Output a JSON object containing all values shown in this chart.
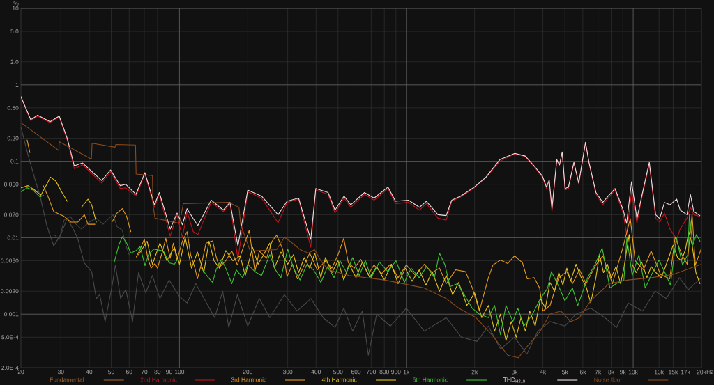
{
  "chart_data": {
    "type": "line",
    "ylabel": "%",
    "xlabel": "Hz",
    "log": "xy",
    "grid": true,
    "legend": "bottom",
    "marker": "none",
    "xlim": [
      20,
      20000
    ],
    "ylim": [
      0.0002,
      10
    ],
    "xticks": [
      20,
      30,
      40,
      50,
      60,
      70,
      80,
      90,
      100,
      200,
      300,
      400,
      500,
      600,
      700,
      800,
      900,
      {
        "value": 1000,
        "label": "1k"
      },
      {
        "value": 2000,
        "label": "2k"
      },
      {
        "value": 3000,
        "label": "3k"
      },
      {
        "value": 4000,
        "label": "4k"
      },
      {
        "value": 5000,
        "label": "5k"
      },
      {
        "value": 6000,
        "label": "6k"
      },
      {
        "value": 7000,
        "label": "7k"
      },
      {
        "value": 8000,
        "label": "8k"
      },
      {
        "value": 9000,
        "label": "9k"
      },
      {
        "value": 10000,
        "label": "10k"
      },
      {
        "value": 13000,
        "label": "13k"
      },
      {
        "value": 15000,
        "label": "15k"
      },
      {
        "value": 17000,
        "label": "17k"
      },
      {
        "value": 20000,
        "label": "20k"
      }
    ],
    "yticks": [
      10,
      {
        "value": 5,
        "label": "5.0"
      },
      {
        "value": 2,
        "label": "2.0"
      },
      1,
      {
        "value": 0.5,
        "label": "0.50"
      },
      {
        "value": 0.2,
        "label": "0.20"
      },
      0.1,
      {
        "value": 0.05,
        "label": "0.050"
      },
      {
        "value": 0.02,
        "label": "0.020"
      },
      0.01,
      {
        "value": 0.005,
        "label": "0.0050"
      },
      {
        "value": 0.002,
        "label": "0.0020"
      },
      0.001,
      {
        "value": 0.0005,
        "label": "5.0E-4"
      },
      {
        "value": 0.0002,
        "label": "2.0E-4"
      }
    ],
    "x": [
      20,
      22.1,
      23.7,
      26.9,
      29.5,
      32,
      34.4,
      37.4,
      45.4,
      49.7,
      54.8,
      57.9,
      64.3,
      70.4,
      77.6,
      81.5,
      91,
      97.6,
      103,
      108,
      115,
      120.5,
      138,
      156,
      167,
      181,
      200,
      230,
      272,
      298,
      335,
      379,
      399,
      452,
      485,
      531,
      569,
      654,
      721,
      830,
      896,
      1022,
      1143,
      1225,
      1379,
      1499,
      1585,
      1735,
      1995,
      2245,
      2583,
      3010,
      3345,
      3660,
      3980,
      4150,
      4265,
      4385,
      4605,
      4735,
      4865,
      5010,
      5185,
      5480,
      5755,
      6165,
      6385,
      6855,
      7345,
      7760,
      8315,
      9040,
      9355,
      9835,
      10390,
      10910,
      11780,
      12560,
      13090,
      13740,
      14520,
      15560,
      16110,
      17270,
      17870,
      18500,
      19680
    ],
    "series": [
      {
        "name": "Fundamental",
        "color": "#a0602a",
        "values": [
          null,
          null,
          null,
          null,
          null,
          null,
          null,
          null,
          null,
          null,
          null,
          null,
          null,
          null,
          null,
          null,
          null,
          null,
          null,
          null,
          null,
          null,
          null,
          null,
          null,
          null,
          null,
          null,
          null,
          null,
          null,
          null,
          null,
          null,
          null,
          null,
          null,
          null,
          null,
          null,
          null,
          null,
          null,
          null,
          null,
          null,
          null,
          null,
          null,
          null,
          null,
          null,
          null,
          null,
          null,
          null,
          null,
          null,
          null,
          null,
          null,
          null,
          null,
          null,
          null,
          null,
          null,
          null,
          null,
          null,
          null,
          null,
          null,
          null,
          null,
          null,
          null,
          null,
          null,
          null,
          null,
          null,
          null,
          null,
          null,
          null,
          null
        ]
      },
      {
        "name": "2nd Harmonic",
        "color": "#c4141c",
        "values": [
          0.68,
          0.34,
          0.39,
          0.32,
          0.38,
          0.19,
          0.08,
          0.09,
          0.052,
          0.073,
          0.044,
          0.045,
          0.035,
          0.068,
          0.025,
          0.037,
          0.0105,
          0.02,
          0.01,
          0.022,
          0.012,
          0.011,
          0.029,
          0.022,
          0.028,
          0.0052,
          0.04,
          0.033,
          0.0157,
          0.029,
          0.032,
          0.0075,
          0.042,
          0.037,
          0.021,
          0.033,
          0.025,
          0.037,
          0.031,
          0.044,
          0.028,
          0.029,
          0.023,
          0.028,
          0.018,
          0.017,
          0.03,
          0.034,
          0.045,
          0.061,
          0.1,
          0.125,
          0.115,
          0.085,
          0.062,
          0.044,
          0.055,
          0.022,
          0.1,
          0.088,
          0.13,
          0.042,
          0.044,
          0.095,
          0.05,
          0.175,
          0.095,
          0.037,
          0.027,
          0.033,
          0.042,
          0.021,
          0.011,
          0.04,
          0.0155,
          0.033,
          0.09,
          0.018,
          0.016,
          0.021,
          0.013,
          0.0096,
          0.013,
          0.018,
          0.025,
          0.02,
          0.019
        ]
      },
      {
        "name": "3rd Harmonic",
        "color": "#e89a1c",
        "x": [
          21.3,
          21.9,
          22.4,
          25.1,
          26.5,
          27.9,
          31,
          33.2,
          35.6,
          38.1,
          39.5,
          42.4,
          43.5,
          50.4,
          53,
          56,
          58.5,
          61,
          62,
          64.5,
          67,
          70,
          72.5,
          75,
          78,
          80,
          84,
          87,
          91,
          94,
          97.5,
          103,
          108,
          112,
          117,
          120,
          126,
          131,
          140,
          145,
          150,
          160,
          170,
          180,
          190,
          203,
          215,
          225,
          242,
          256,
          268,
          285,
          298,
          315,
          331,
          350,
          375,
          405,
          440,
          470,
          500,
          530,
          555,
          590,
          630,
          680,
          720,
          780,
          850,
          920,
          1000,
          1100,
          1200,
          1300,
          1400,
          1500,
          1650,
          1823,
          1955,
          2100,
          2300,
          2409,
          2600,
          2800,
          3000,
          3250,
          3414,
          3660,
          3870,
          4000,
          4300,
          4700,
          5100,
          5400,
          5800,
          6200,
          6850,
          7350,
          8100,
          9040,
          9711,
          10200,
          11100,
          12000,
          13200,
          14500,
          15300,
          16400,
          17300,
          18183,
          18800,
          20000
        ],
        "values": [
          0.19,
          0.13,
          null,
          0.048,
          0.033,
          0.022,
          0.019,
          0.016,
          0.016,
          0.02,
          0.015,
          0.015,
          null,
          0.016,
          0.021,
          0.024,
          0.019,
          0.012,
          null,
          0.0056,
          0.007,
          0.0096,
          0.0054,
          0.004,
          0.0046,
          0.004,
          0.0065,
          0.0098,
          0.0054,
          0.0085,
          0.0051,
          0.009,
          0.012,
          0.006,
          0.004,
          0.0029,
          0.005,
          0.0085,
          0.0091,
          0.0057,
          0.0041,
          0.005,
          0.0067,
          0.0044,
          0.0071,
          0.0125,
          0.0036,
          0.0067,
          0.0054,
          0.009,
          0.0108,
          0.0071,
          0.0031,
          0.0045,
          0.0029,
          0.004,
          0.0063,
          0.0038,
          0.005,
          0.004,
          0.006,
          0.0098,
          0.0047,
          0.004,
          0.0052,
          0.0033,
          0.0044,
          0.0034,
          0.0045,
          0.003,
          0.0044,
          0.0032,
          0.0045,
          0.0035,
          0.004,
          0.0025,
          0.0038,
          0.0036,
          0.0022,
          0.0011,
          0.003,
          0.0044,
          0.0051,
          0.0046,
          0.0058,
          0.0047,
          0.0029,
          0.003,
          0.0022,
          0.0011,
          0.0013,
          0.003,
          0.0036,
          0.0025,
          0.0038,
          0.0025,
          0.0044,
          0.0058,
          0.0025,
          0.0077,
          0.0178,
          0.005,
          0.0038,
          0.0067,
          0.0033,
          0.0029,
          0.0101,
          0.006,
          0.0045,
          0.0203,
          0.0044,
          0.0073
        ]
      },
      {
        "name": "4th Harmonic",
        "color": "#e6c21a",
        "x": [
          20,
          21.5,
          23,
          24.5,
          26,
          27,
          28.5,
          30.5,
          32,
          33,
          37,
          39.5,
          41,
          43,
          44,
          66,
          72,
          76,
          82,
          88,
          95,
          100,
          106,
          113,
          120,
          128,
          135,
          142,
          150,
          160,
          172,
          185,
          195,
          210,
          222,
          235,
          250,
          262,
          280,
          300,
          318,
          335,
          355,
          375,
          395,
          420,
          440,
          470,
          500,
          530,
          560,
          600,
          640,
          690,
          740,
          800,
          860,
          920,
          990,
          1060,
          1140,
          1220,
          1300,
          1400,
          1500,
          1600,
          1700,
          1850,
          2000,
          2150,
          2300,
          2450,
          2600,
          2750,
          2900,
          3050,
          3200,
          3350,
          3500,
          3700,
          3900,
          4100,
          4300,
          4500,
          4700,
          4900,
          5100,
          5300,
          5600,
          5900,
          6200,
          6500,
          6850,
          7100,
          7400,
          7700,
          8000,
          8400,
          8800,
          9100,
          9600,
          9900,
          10300,
          10900,
          11500,
          12000,
          12600,
          13300,
          14000,
          14500,
          15000,
          15700,
          16300,
          17000,
          17600,
          18200,
          18900,
          19700
        ],
        "values": [
          0.045,
          0.048,
          0.042,
          0.036,
          0.05,
          0.062,
          0.055,
          0.038,
          0.03,
          null,
          0.025,
          0.032,
          0.027,
          0.016,
          null,
          0.006,
          0.009,
          0.0045,
          0.0085,
          0.005,
          0.0075,
          0.0045,
          0.01,
          0.004,
          0.0065,
          0.0035,
          0.009,
          0.005,
          0.004,
          0.0068,
          0.005,
          0.0058,
          0.0032,
          0.0075,
          0.0045,
          0.006,
          0.0085,
          0.004,
          0.0065,
          0.0045,
          0.006,
          0.0035,
          0.0055,
          0.004,
          0.0063,
          0.003,
          0.0055,
          0.0035,
          0.005,
          0.0028,
          0.0045,
          0.003,
          0.0048,
          0.003,
          0.0042,
          0.0028,
          0.0045,
          0.0025,
          0.004,
          0.0027,
          0.0038,
          0.0024,
          0.0036,
          0.002,
          0.0032,
          0.0018,
          0.0026,
          0.0013,
          0.0019,
          0.0009,
          0.0013,
          0.0006,
          0.001,
          0.00045,
          0.0008,
          0.0005,
          0.0009,
          0.0006,
          0.0011,
          0.0007,
          0.0016,
          0.0012,
          0.0026,
          0.002,
          0.0035,
          0.0024,
          0.004,
          0.0027,
          0.0045,
          0.003,
          0.0023,
          0.0014,
          0.003,
          0.006,
          0.0035,
          0.0045,
          0.003,
          0.0042,
          0.0025,
          0.004,
          0.011,
          0.0045,
          0.0035,
          0.0048,
          0.003,
          0.0042,
          0.0035,
          0.003,
          0.0045,
          0.006,
          0.008,
          0.0055,
          0.005,
          0.007,
          0.012,
          0.008,
          0.0035,
          0.0025
        ]
      },
      {
        "name": "5th Harmonic",
        "color": "#3ec234",
        "x": [
          20,
          21.3,
          22.6,
          24.3,
          25.1,
          25.6,
          51.5,
          54,
          56,
          58.5,
          61,
          64.5,
          67,
          70.5,
          73,
          77,
          81,
          85,
          90,
          95,
          98,
          101,
          124,
          133,
          140,
          145,
          153,
          160,
          170,
          178,
          190,
          200,
          215,
          230,
          250,
          265,
          280,
          300,
          318,
          340,
          365,
          390,
          420,
          450,
          480,
          510,
          545,
          580,
          620,
          660,
          700,
          760,
          830,
          900,
          980,
          1050,
          1140,
          1230,
          1330,
          1400,
          1480,
          1560,
          1680,
          1800,
          1950,
          2100,
          2300,
          2450,
          2600,
          2750,
          2950,
          3100,
          3300,
          3600,
          3900,
          4200,
          4360,
          4700,
          5000,
          5400,
          5700,
          6300,
          6800,
          7300,
          7900,
          8400,
          9100,
          9380,
          9900,
          10600,
          11300,
          12000,
          13000,
          14000,
          14600,
          15500,
          16500,
          17400,
          17700,
          18300,
          19000,
          19700
        ],
        "values": [
          0.04,
          0.045,
          0.042,
          0.034,
          0.036,
          null,
          0.0047,
          0.008,
          0.0103,
          0.0085,
          0.0063,
          0.0068,
          0.0077,
          0.0043,
          0.006,
          0.0071,
          0.0069,
          0.0067,
          0.0047,
          0.0045,
          0.0052,
          null,
          0.0041,
          0.0031,
          0.0026,
          0.0038,
          0.0052,
          0.004,
          0.0025,
          0.0038,
          0.003,
          0.0045,
          0.0036,
          0.0032,
          0.006,
          0.0038,
          0.003,
          0.0071,
          0.004,
          0.0028,
          0.0045,
          0.0038,
          0.0026,
          0.0042,
          0.003,
          0.005,
          0.0035,
          0.0055,
          0.0032,
          0.005,
          0.003,
          0.0048,
          0.0036,
          0.005,
          0.0026,
          0.004,
          0.003,
          0.0042,
          0.003,
          0.0063,
          0.0044,
          0.0023,
          0.0025,
          0.0018,
          0.0012,
          0.001,
          0.0009,
          0.0013,
          0.00054,
          0.0013,
          0.0008,
          0.0012,
          0.0007,
          0.001,
          0.0016,
          0.0022,
          0.0036,
          0.0023,
          0.0015,
          0.0022,
          0.0013,
          0.003,
          0.0045,
          0.0073,
          0.0022,
          0.0025,
          0.0028,
          0.0101,
          0.0032,
          0.006,
          0.0022,
          0.0032,
          0.0051,
          0.0032,
          0.0024,
          0.0101,
          0.0044,
          0.006,
          0.02,
          0.008,
          0.011,
          0.009
        ]
      },
      {
        "name": "THD$_{H2..9}$",
        "color": "#f0dde2",
        "values": [
          0.7,
          0.35,
          0.4,
          0.33,
          0.39,
          0.2,
          0.087,
          0.095,
          0.056,
          0.077,
          0.048,
          0.05,
          0.037,
          0.071,
          0.027,
          0.039,
          0.013,
          0.021,
          0.0148,
          0.024,
          0.0178,
          0.0145,
          0.031,
          0.023,
          0.029,
          0.0078,
          0.042,
          0.035,
          0.02,
          0.03,
          0.033,
          0.0095,
          0.044,
          0.039,
          0.023,
          0.035,
          0.027,
          0.039,
          0.033,
          0.046,
          0.03,
          0.031,
          0.025,
          0.03,
          0.02,
          0.0195,
          0.031,
          0.035,
          0.046,
          0.062,
          0.105,
          0.127,
          0.117,
          0.087,
          0.064,
          0.046,
          0.057,
          0.024,
          0.105,
          0.09,
          0.132,
          0.044,
          0.046,
          0.097,
          0.052,
          0.177,
          0.097,
          0.039,
          0.029,
          0.035,
          0.044,
          0.023,
          0.0154,
          0.054,
          0.0178,
          0.035,
          0.097,
          0.02,
          0.0178,
          0.029,
          0.027,
          0.032,
          0.023,
          0.02,
          0.037,
          0.022,
          0.0195
        ]
      },
      {
        "name": "Noise floor",
        "color": "#8a4a1c",
        "x": [
          20,
          29.4,
          29.5,
          40.9,
          41.2,
          52,
          52.4,
          64,
          64.4,
          76,
          76.4,
          78,
          100,
          104,
          165,
          183,
          186,
          205,
          268,
          290,
          310,
          340,
          370,
          394,
          420,
          453,
          560,
          800,
          1200,
          1500,
          1700,
          2030,
          2380,
          2800,
          3120,
          3414,
          3870,
          4290,
          4800,
          5300,
          5800,
          6500,
          7800,
          9500,
          12000,
          15000,
          20000
        ],
        "values": [
          0.32,
          0.138,
          0.18,
          0.107,
          0.172,
          0.153,
          0.166,
          0.163,
          0.068,
          0.065,
          0.027,
          0.018,
          0.0154,
          0.028,
          0.029,
          0.025,
          0.015,
          0.0067,
          0.007,
          0.0101,
          0.0088,
          0.007,
          0.0063,
          0.007,
          0.005,
          0.0038,
          0.0032,
          0.0028,
          0.0022,
          0.0016,
          0.0012,
          0.0009,
          0.00054,
          0.00029,
          0.00027,
          0.00038,
          0.00058,
          0.001,
          0.0011,
          0.0008,
          0.0009,
          0.0015,
          0.0025,
          0.0028,
          0.003,
          0.0033,
          0.0045
        ]
      },
      {
        "color": "#4a4a4a",
        "x": [
          20,
          21.5,
          23,
          24.3,
          26,
          27.9,
          30,
          32,
          34,
          35.6,
          38,
          41,
          43,
          44.5,
          47,
          50.4,
          52.2,
          55,
          58,
          62.1,
          66,
          71,
          76,
          82,
          90,
          100,
          108,
          118,
          130,
          143,
          155,
          165,
          180,
          200,
          225,
          250,
          290,
          330,
          380,
          430,
          485,
          530,
          580,
          640,
          680,
          740,
          850,
          1000,
          1200,
          1500,
          1750,
          2050,
          2300,
          2600,
          3000,
          3400,
          3800,
          4300,
          5000,
          5600,
          6500,
          7500,
          8448,
          9500,
          11000,
          12500,
          14000,
          16000,
          17500,
          20000
        ],
        "values": [
          0.28,
          0.12,
          0.06,
          0.035,
          0.0145,
          0.0078,
          0.011,
          0.018,
          0.013,
          0.0098,
          0.0047,
          0.0036,
          0.0016,
          0.0018,
          0.0008,
          0.0023,
          0.0044,
          0.0016,
          0.0021,
          0.0008,
          0.0035,
          0.0019,
          0.0032,
          0.0016,
          0.0028,
          0.0017,
          0.0014,
          0.0025,
          0.0015,
          0.0009,
          0.002,
          0.00067,
          0.0018,
          0.0007,
          0.0016,
          0.0009,
          0.0018,
          0.0011,
          0.0016,
          0.0009,
          0.00067,
          0.0012,
          0.0006,
          0.0011,
          0.00029,
          0.001,
          0.0007,
          0.0012,
          0.0006,
          0.0009,
          0.0005,
          0.00044,
          0.0007,
          0.00035,
          0.0005,
          0.0003,
          0.0006,
          0.0008,
          0.0007,
          0.001,
          0.0012,
          0.0009,
          0.00067,
          0.0014,
          0.0011,
          0.002,
          0.0016,
          0.003,
          0.0021,
          0.003
        ]
      },
      {
        "color": "#444444",
        "x": [
          28,
          29.5,
          31,
          33,
          35,
          37,
          40,
          43,
          46,
          49,
          51,
          53,
          56,
          58,
          60
        ],
        "values": [
          0.011,
          0.0095,
          0.017,
          0.019,
          0.015,
          0.013,
          0.016,
          0.018,
          0.015,
          0.018,
          0.02,
          0.014,
          0.0125,
          0.008,
          0.006
        ]
      }
    ]
  }
}
